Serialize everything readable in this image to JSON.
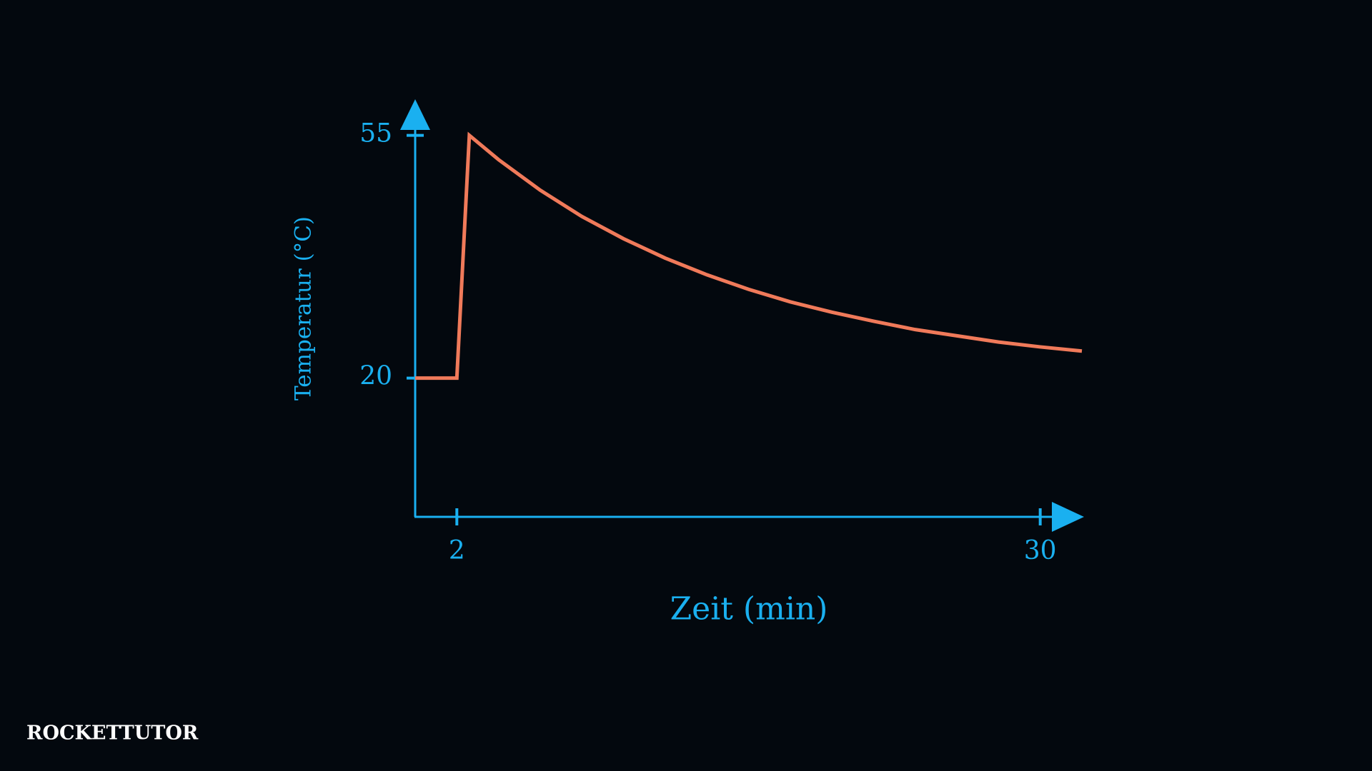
{
  "chart_data": {
    "type": "line",
    "x_label": "Zeit (min)",
    "y_label": "Temperatur (°C)",
    "x": [
      0,
      2,
      2.6,
      4,
      6,
      8,
      10,
      12,
      14,
      16,
      18,
      20,
      22,
      24,
      26,
      28,
      30,
      32
    ],
    "series": [
      {
        "name": "Temperatur",
        "color": "#f07a5a",
        "values": [
          20,
          20,
          55,
          51.5,
          47.1,
          43.3,
          40.1,
          37.3,
          34.9,
          32.8,
          31.0,
          29.5,
          28.2,
          27.0,
          26.1,
          25.2,
          24.5,
          23.9
        ]
      }
    ],
    "axis_color": "#1ab0f0",
    "xlim": [
      0,
      32
    ],
    "ylim": [
      0,
      60
    ],
    "xticks": [
      2,
      30
    ],
    "yticks": [
      20,
      55
    ],
    "grid": false
  },
  "logo": "ROCKETTUTOR"
}
